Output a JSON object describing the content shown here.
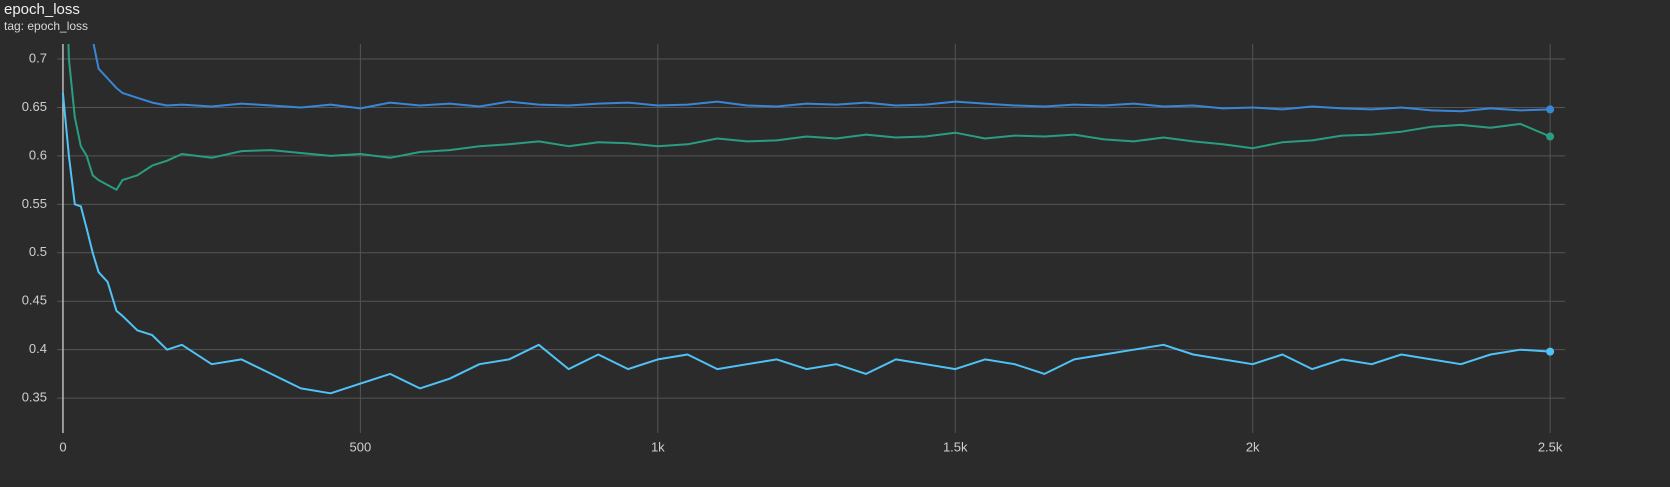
{
  "chart_data": {
    "type": "line",
    "title": "epoch_loss",
    "subtitle": "tag: epoch_loss",
    "x": [
      0,
      10,
      20,
      30,
      40,
      50,
      60,
      75,
      90,
      100,
      125,
      150,
      175,
      200,
      250,
      300,
      350,
      400,
      450,
      500,
      550,
      600,
      650,
      700,
      750,
      800,
      850,
      900,
      950,
      1000,
      1050,
      1100,
      1150,
      1200,
      1250,
      1300,
      1350,
      1400,
      1450,
      1500,
      1550,
      1600,
      1650,
      1700,
      1750,
      1800,
      1850,
      1900,
      1950,
      2000,
      2050,
      2100,
      2150,
      2200,
      2250,
      2300,
      2350,
      2400,
      2450,
      2500
    ],
    "series": [
      {
        "color": "#3a86d6",
        "values": [
          null,
          null,
          null,
          null,
          null,
          0.72,
          0.69,
          0.68,
          0.67,
          0.665,
          0.66,
          0.655,
          0.652,
          0.653,
          0.651,
          0.654,
          0.652,
          0.65,
          0.653,
          0.649,
          0.655,
          0.652,
          0.654,
          0.651,
          0.656,
          0.653,
          0.652,
          0.654,
          0.655,
          0.652,
          0.653,
          0.656,
          0.652,
          0.651,
          0.654,
          0.653,
          0.655,
          0.652,
          0.653,
          0.656,
          0.654,
          0.652,
          0.651,
          0.653,
          0.652,
          0.654,
          0.651,
          0.652,
          0.649,
          0.65,
          0.648,
          0.651,
          0.649,
          0.648,
          0.65,
          0.647,
          0.646,
          0.649,
          0.647,
          0.648
        ]
      },
      {
        "color": "#2a9d80",
        "values": [
          0.9,
          0.7,
          0.64,
          0.61,
          0.6,
          0.58,
          0.575,
          0.57,
          0.565,
          0.575,
          0.58,
          0.59,
          0.595,
          0.602,
          0.598,
          0.605,
          0.606,
          0.603,
          0.6,
          0.602,
          0.598,
          0.604,
          0.606,
          0.61,
          0.612,
          0.615,
          0.61,
          0.614,
          0.613,
          0.61,
          0.612,
          0.618,
          0.615,
          0.616,
          0.62,
          0.618,
          0.622,
          0.619,
          0.62,
          0.624,
          0.618,
          0.621,
          0.62,
          0.622,
          0.617,
          0.615,
          0.619,
          0.615,
          0.612,
          0.608,
          0.614,
          0.616,
          0.621,
          0.622,
          0.625,
          0.63,
          0.632,
          0.629,
          0.633,
          0.62
        ]
      },
      {
        "color": "#4fc3f7",
        "values": [
          0.665,
          0.6,
          0.55,
          0.548,
          0.525,
          0.5,
          0.48,
          0.47,
          0.44,
          0.435,
          0.42,
          0.415,
          0.4,
          0.405,
          0.385,
          0.39,
          0.375,
          0.36,
          0.355,
          0.365,
          0.375,
          0.36,
          0.37,
          0.385,
          0.39,
          0.405,
          0.38,
          0.395,
          0.38,
          0.39,
          0.395,
          0.38,
          0.385,
          0.39,
          0.38,
          0.385,
          0.375,
          0.39,
          0.385,
          0.38,
          0.39,
          0.385,
          0.375,
          0.39,
          0.395,
          0.4,
          0.405,
          0.395,
          0.39,
          0.385,
          0.395,
          0.38,
          0.39,
          0.385,
          0.395,
          0.39,
          0.385,
          0.395,
          0.4,
          0.398
        ]
      }
    ],
    "xlim": [
      -10,
      2525
    ],
    "xticks": [
      0,
      500,
      {
        "value": 1000,
        "label": "1k"
      },
      {
        "value": 1500,
        "label": "1.5k"
      },
      {
        "value": 2000,
        "label": "2k"
      },
      {
        "value": 2500,
        "label": "2.5k"
      }
    ],
    "ylim": [
      0.314,
      0.7155
    ],
    "yticks": [
      0.35,
      0.4,
      0.45,
      0.5,
      0.55,
      0.6,
      0.65,
      0.7
    ],
    "grid": true
  }
}
